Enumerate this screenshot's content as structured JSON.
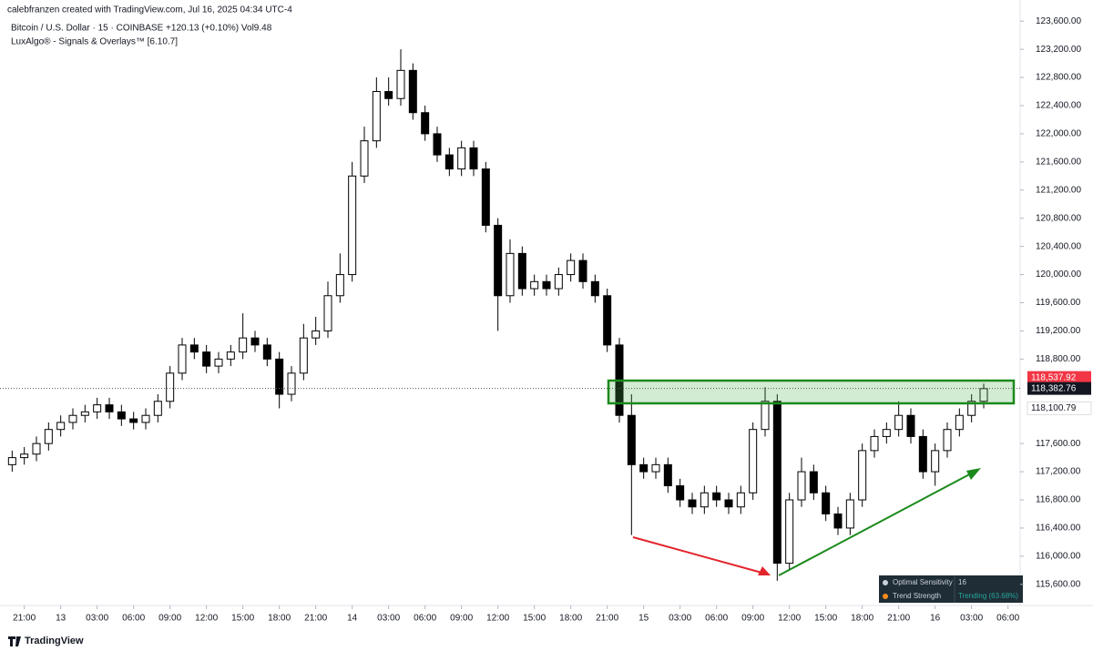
{
  "header": {
    "credit": "calebfranzen created with TradingView.com, Jul 16, 2025 04:34 UTC-4",
    "symbol": "Bitcoin / U.S. Dollar · 15 · COINBASE  +120.13 (+0.10%)  Vol9.48",
    "indicator": "LuxAlgo® - Signals & Overlays™ [6.10.7]"
  },
  "chart_data": {
    "type": "candlestick",
    "x": [
      -1,
      0,
      1,
      2,
      3,
      4,
      5,
      6,
      7,
      8,
      9,
      10,
      11,
      12,
      13,
      14,
      15,
      16,
      17,
      18,
      19,
      20,
      21,
      22,
      23,
      24,
      25,
      26,
      27,
      28,
      29,
      30,
      31,
      32,
      33,
      34,
      35,
      36,
      37,
      38,
      39,
      40,
      41,
      42,
      43,
      44,
      45,
      46,
      47,
      48,
      49,
      50,
      51,
      52,
      53,
      54,
      55,
      56,
      57,
      58,
      59,
      60,
      61,
      62,
      63,
      64,
      65,
      66,
      67,
      68,
      69,
      70,
      71,
      72,
      73,
      74,
      75,
      76,
      77,
      78,
      79
    ],
    "open": [
      117300,
      117400,
      117450,
      117600,
      117800,
      117900,
      118000,
      118050,
      118150,
      118050,
      117950,
      117900,
      118000,
      118200,
      118600,
      119000,
      118900,
      118700,
      118800,
      118900,
      119100,
      119000,
      118800,
      118300,
      118600,
      119100,
      119200,
      119700,
      120000,
      121400,
      121900,
      122600,
      122500,
      122900,
      122300,
      122000,
      121700,
      121500,
      121800,
      121500,
      120700,
      119700,
      120300,
      119800,
      119900,
      119800,
      120000,
      120200,
      119900,
      119700,
      119000,
      118000,
      117300,
      117200,
      117300,
      117000,
      116800,
      116700,
      116900,
      116800,
      116700,
      116900,
      117800,
      118200,
      115900,
      116800,
      117200,
      116900,
      116600,
      116400,
      116800,
      117500,
      117700,
      117800,
      118000,
      117700,
      117200,
      117500,
      117800,
      118000,
      118200
    ],
    "high": [
      117500,
      117550,
      117700,
      117900,
      118000,
      118100,
      118150,
      118250,
      118250,
      118150,
      118050,
      118100,
      118300,
      118700,
      119100,
      119100,
      119000,
      118900,
      119000,
      119450,
      119200,
      119100,
      118900,
      118700,
      119300,
      119400,
      119900,
      120300,
      121600,
      122100,
      122800,
      122800,
      123200,
      123000,
      122400,
      122100,
      121800,
      121900,
      121900,
      121600,
      120800,
      120500,
      120400,
      120000,
      120000,
      120100,
      120300,
      120300,
      120000,
      119800,
      119100,
      118300,
      117400,
      117400,
      117400,
      117100,
      116900,
      117000,
      117000,
      116900,
      117000,
      117900,
      118400,
      118300,
      116900,
      117400,
      117300,
      117000,
      116700,
      116900,
      117600,
      117800,
      117900,
      118200,
      118100,
      117800,
      117600,
      117900,
      118100,
      118300,
      118450
    ],
    "low": [
      117200,
      117300,
      117350,
      117500,
      117700,
      117800,
      117900,
      117950,
      117950,
      117850,
      117800,
      117800,
      117900,
      118100,
      118500,
      118800,
      118600,
      118600,
      118700,
      118800,
      118900,
      118700,
      118100,
      118200,
      118500,
      119000,
      119100,
      119600,
      119900,
      121300,
      121800,
      122400,
      122400,
      122200,
      121900,
      121600,
      121400,
      121400,
      121400,
      120600,
      119200,
      119600,
      119700,
      119700,
      119700,
      119700,
      119900,
      119800,
      119600,
      118900,
      117900,
      116300,
      117100,
      117100,
      116900,
      116700,
      116600,
      116600,
      116700,
      116600,
      116600,
      116800,
      117700,
      115650,
      115800,
      116700,
      116800,
      116500,
      116300,
      116300,
      116700,
      117400,
      117600,
      117700,
      117600,
      117100,
      117000,
      117400,
      117700,
      117900,
      118100
    ],
    "close": [
      117400,
      117450,
      117600,
      117800,
      117900,
      118000,
      118050,
      118150,
      118050,
      117950,
      117900,
      118000,
      118200,
      118600,
      119000,
      118900,
      118700,
      118800,
      118900,
      119100,
      119000,
      118800,
      118300,
      118600,
      119100,
      119200,
      119700,
      120000,
      121400,
      121900,
      122600,
      122500,
      122900,
      122300,
      122000,
      121700,
      121500,
      121800,
      121500,
      120700,
      119700,
      120300,
      119800,
      119900,
      119800,
      120000,
      120200,
      119900,
      119700,
      119000,
      118000,
      117300,
      117200,
      117300,
      117000,
      116800,
      116700,
      116900,
      116800,
      116700,
      116900,
      117800,
      118200,
      115900,
      116800,
      117200,
      116900,
      116600,
      116400,
      116800,
      117500,
      117700,
      117800,
      118000,
      117700,
      117200,
      117500,
      117800,
      118000,
      118200,
      118380
    ],
    "up_color": "#ffffff",
    "down_color": "#000000",
    "xlim": [
      -2,
      82
    ],
    "ylim": [
      115300,
      123900
    ],
    "xticks": [
      {
        "value": 0,
        "label": "21:00"
      },
      {
        "value": 3,
        "label": "13"
      },
      {
        "value": 6,
        "label": "03:00"
      },
      {
        "value": 9,
        "label": "06:00"
      },
      {
        "value": 12,
        "label": "09:00"
      },
      {
        "value": 15,
        "label": "12:00"
      },
      {
        "value": 18,
        "label": "15:00"
      },
      {
        "value": 21,
        "label": "18:00"
      },
      {
        "value": 24,
        "label": "21:00"
      },
      {
        "value": 27,
        "label": "14"
      },
      {
        "value": 30,
        "label": "03:00"
      },
      {
        "value": 33,
        "label": "06:00"
      },
      {
        "value": 36,
        "label": "09:00"
      },
      {
        "value": 39,
        "label": "12:00"
      },
      {
        "value": 42,
        "label": "15:00"
      },
      {
        "value": 45,
        "label": "18:00"
      },
      {
        "value": 48,
        "label": "21:00"
      },
      {
        "value": 51,
        "label": "15"
      },
      {
        "value": 54,
        "label": "03:00"
      },
      {
        "value": 57,
        "label": "06:00"
      },
      {
        "value": 60,
        "label": "09:00"
      },
      {
        "value": 63,
        "label": "12:00"
      },
      {
        "value": 66,
        "label": "15:00"
      },
      {
        "value": 69,
        "label": "18:00"
      },
      {
        "value": 72,
        "label": "21:00"
      },
      {
        "value": 75,
        "label": "16"
      },
      {
        "value": 78,
        "label": "03:00"
      },
      {
        "value": 81,
        "label": "06:00"
      }
    ],
    "yticks": [
      {
        "value": 115600,
        "label": "115,600.00"
      },
      {
        "value": 116000,
        "label": "116,000.00"
      },
      {
        "value": 116400,
        "label": "116,400.00"
      },
      {
        "value": 116800,
        "label": "116,800.00"
      },
      {
        "value": 117200,
        "label": "117,200.00"
      },
      {
        "value": 117600,
        "label": "117,600.00"
      },
      {
        "value": 118800,
        "label": "118,800.00"
      },
      {
        "value": 119200,
        "label": "119,200.00"
      },
      {
        "value": 119600,
        "label": "119,600.00"
      },
      {
        "value": 120000,
        "label": "120,000.00"
      },
      {
        "value": 120400,
        "label": "120,400.00"
      },
      {
        "value": 120800,
        "label": "120,800.00"
      },
      {
        "value": 121200,
        "label": "121,200.00"
      },
      {
        "value": 121600,
        "label": "121,600.00"
      },
      {
        "value": 122000,
        "label": "122,000.00"
      },
      {
        "value": 122400,
        "label": "122,400.00"
      },
      {
        "value": 122800,
        "label": "122,800.00"
      },
      {
        "value": 123200,
        "label": "123,200.00"
      },
      {
        "value": 123600,
        "label": "123,600.00"
      }
    ],
    "price_labels": [
      {
        "value": 118537.92,
        "label": "118,537.92",
        "color": "#f23645"
      },
      {
        "value": 118382.76,
        "label": "118,382.76",
        "color": "#131722"
      },
      {
        "value": 118100.79,
        "label": "118,100.79",
        "color": "#ffffff"
      }
    ],
    "last_price": {
      "value": 118382.76,
      "label": "118,382.76"
    }
  },
  "panel": {
    "rows": [
      [
        "Optimal Sensitivity",
        "16"
      ],
      [
        "Trend Strength",
        "Trending (63.68%)"
      ]
    ]
  },
  "footer": {
    "brand": "TradingView"
  }
}
